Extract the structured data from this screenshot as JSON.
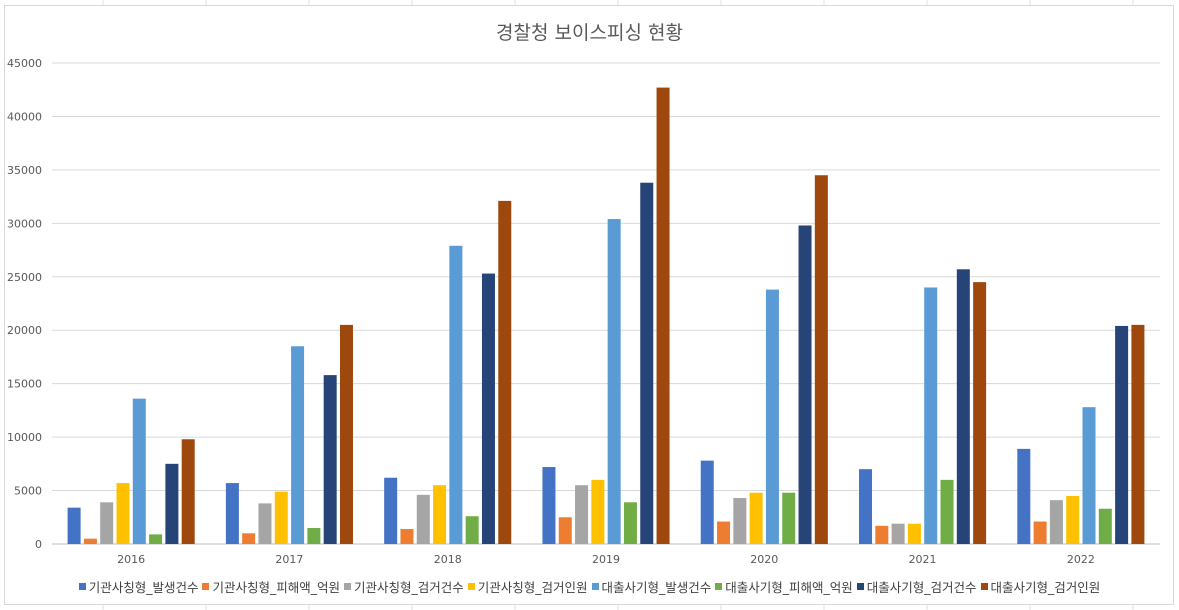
{
  "chart_data": {
    "type": "bar",
    "title": "경찰청 보이스피싱 현황",
    "categories": [
      "2016",
      "2017",
      "2018",
      "2019",
      "2020",
      "2021",
      "2022"
    ],
    "ylim": [
      0,
      45000
    ],
    "yticks": [
      0,
      5000,
      10000,
      15000,
      20000,
      25000,
      30000,
      35000,
      40000,
      45000
    ],
    "grid": true,
    "legend_position": "bottom",
    "series": [
      {
        "name": "기관사칭형_발생건수",
        "color": "#4472c4",
        "values": [
          3400,
          5700,
          6200,
          7200,
          7800,
          7000,
          8900
        ]
      },
      {
        "name": "기관사칭형_피해액_억원",
        "color": "#ed7d31",
        "values": [
          500,
          1000,
          1400,
          2500,
          2100,
          1700,
          2100
        ]
      },
      {
        "name": "기관사칭형_검거건수",
        "color": "#a5a5a5",
        "values": [
          3900,
          3800,
          4600,
          5500,
          4300,
          1900,
          4100
        ]
      },
      {
        "name": "기관사칭형_검거인원",
        "color": "#ffc000",
        "values": [
          5700,
          4900,
          5500,
          6000,
          4800,
          1900,
          4500
        ]
      },
      {
        "name": "대출사기형_발생건수",
        "color": "#5b9bd5",
        "values": [
          13600,
          18500,
          27900,
          30400,
          23800,
          24000,
          12800
        ]
      },
      {
        "name": "대출사기형_피해액_억원",
        "color": "#70ad47",
        "values": [
          900,
          1500,
          2600,
          3900,
          4800,
          6000,
          3300
        ]
      },
      {
        "name": "대출사기형_검거건수",
        "color": "#264478",
        "values": [
          7500,
          15800,
          25300,
          33800,
          29800,
          25700,
          20400
        ]
      },
      {
        "name": "대출사기형_검거인원",
        "color": "#9e480e",
        "values": [
          9800,
          20500,
          32100,
          42700,
          34500,
          24500,
          20500
        ]
      }
    ]
  }
}
